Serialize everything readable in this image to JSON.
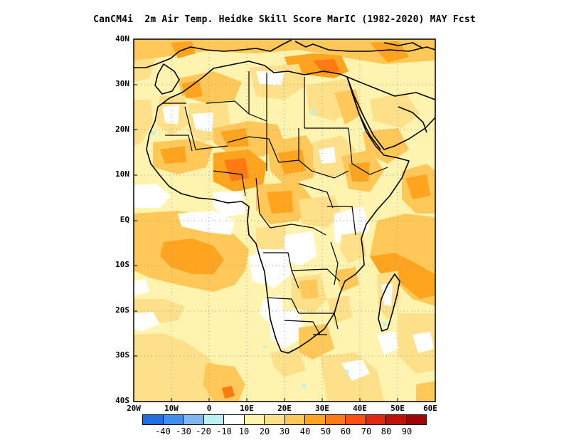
{
  "title": "CanCM4i  2m Air Temp. Heidke Skill Score MarIC (1982-2020) MAY Fcst",
  "lat_labels": [
    "40N",
    "30N",
    "20N",
    "10N",
    "EQ",
    "10S",
    "20S",
    "30S",
    "40S"
  ],
  "lon_labels": [
    "20W",
    "10W",
    "0",
    "10E",
    "20E",
    "30E",
    "40E",
    "50E",
    "60E"
  ],
  "colorbar": {
    "colors": [
      "#1f6fe0",
      "#3f8ff0",
      "#7fb7f2",
      "#bdf0f0",
      "#ffffff",
      "#fff3b0",
      "#ffe08a",
      "#ffc858",
      "#ffa41f",
      "#ff7a12",
      "#ff4f12",
      "#e02810",
      "#c01008",
      "#a00404"
    ],
    "labels": [
      "-40",
      "-30",
      "-20",
      "-10",
      "10",
      "20",
      "30",
      "40",
      "50",
      "60",
      "70",
      "80",
      "90"
    ]
  },
  "map": {
    "extent": {
      "lon": [
        -20,
        60
      ],
      "lat": [
        -40,
        40
      ]
    },
    "variable": "Heidke Skill Score",
    "colors": {
      "ocean_base": "#fff3b0",
      "land_base": "#fff3b0",
      "high": "#ffc858",
      "highest": "#ffa41f",
      "peak": "#ff7a12",
      "none": "#ffffff"
    }
  }
}
